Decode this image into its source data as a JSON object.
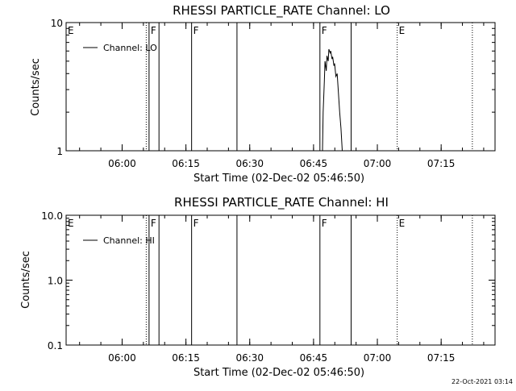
{
  "footer": {
    "timestamp": "22-Oct-2021 03:14"
  },
  "chart_data": [
    {
      "type": "line",
      "title": "RHESSI PARTICLE_RATE Channel: LO",
      "xlabel": "Start Time (02-Dec-02 05:46:50)",
      "ylabel": "Counts/sec",
      "yscale": "log",
      "ylim": [
        1,
        10
      ],
      "xlim": [
        "05:46:50",
        "07:27:40"
      ],
      "x_ticks": [
        "06:00",
        "06:15",
        "06:30",
        "06:45",
        "07:00",
        "07:15"
      ],
      "y_ticks": [
        "1",
        "10"
      ],
      "legend": {
        "label": "Channel: LO",
        "placement": "top-left"
      },
      "series": [
        {
          "name": "Channel: LO",
          "x": [
            "06:47:06",
            "06:47:15",
            "06:47:33",
            "06:47:42",
            "06:48:00",
            "06:48:09",
            "06:48:27",
            "06:48:36",
            "06:48:54",
            "06:49:03",
            "06:49:21",
            "06:49:30",
            "06:49:48",
            "06:49:57",
            "06:50:15",
            "06:50:33",
            "06:50:51",
            "06:51:09",
            "06:51:27",
            "06:51:45"
          ],
          "y": [
            1.0,
            2.0,
            3.5,
            5.0,
            4.2,
            5.5,
            5.0,
            6.2,
            5.8,
            6.0,
            5.2,
            5.4,
            4.6,
            4.8,
            3.8,
            4.0,
            2.8,
            2.0,
            1.5,
            1.0
          ]
        }
      ],
      "markers": [
        {
          "time": "05:46:50",
          "label": "E",
          "style": "none"
        },
        {
          "time": "06:05:40",
          "label": "",
          "style": "dotted"
        },
        {
          "time": "06:06:20",
          "label": "F",
          "style": "solid"
        },
        {
          "time": "06:08:40",
          "label": "",
          "style": "solid"
        },
        {
          "time": "06:16:20",
          "label": "F",
          "style": "solid"
        },
        {
          "time": "06:27:00",
          "label": "",
          "style": "solid"
        },
        {
          "time": "06:46:30",
          "label": "F",
          "style": "solid"
        },
        {
          "time": "06:53:50",
          "label": "",
          "style": "solid"
        },
        {
          "time": "07:04:40",
          "label": "E",
          "style": "dotted"
        },
        {
          "time": "07:22:20",
          "label": "",
          "style": "dotted"
        }
      ]
    },
    {
      "type": "line",
      "title": "RHESSI PARTICLE_RATE Channel: HI",
      "xlabel": "Start Time (02-Dec-02 05:46:50)",
      "ylabel": "Counts/sec",
      "yscale": "log",
      "ylim": [
        0.1,
        10
      ],
      "xlim": [
        "05:46:50",
        "07:27:40"
      ],
      "x_ticks": [
        "06:00",
        "06:15",
        "06:30",
        "06:45",
        "07:00",
        "07:15"
      ],
      "y_ticks": [
        "0.1",
        "1.0",
        "10.0"
      ],
      "legend": {
        "label": "Channel: HI",
        "placement": "top-left"
      },
      "series": [
        {
          "name": "Channel: HI",
          "x": [],
          "y": []
        }
      ],
      "markers": [
        {
          "time": "05:46:50",
          "label": "E",
          "style": "none"
        },
        {
          "time": "06:05:40",
          "label": "",
          "style": "dotted"
        },
        {
          "time": "06:06:20",
          "label": "F",
          "style": "solid"
        },
        {
          "time": "06:08:40",
          "label": "",
          "style": "solid"
        },
        {
          "time": "06:16:20",
          "label": "F",
          "style": "solid"
        },
        {
          "time": "06:27:00",
          "label": "",
          "style": "solid"
        },
        {
          "time": "06:46:30",
          "label": "F",
          "style": "solid"
        },
        {
          "time": "06:53:50",
          "label": "",
          "style": "solid"
        },
        {
          "time": "07:04:40",
          "label": "E",
          "style": "dotted"
        },
        {
          "time": "07:22:20",
          "label": "",
          "style": "dotted"
        }
      ]
    }
  ]
}
